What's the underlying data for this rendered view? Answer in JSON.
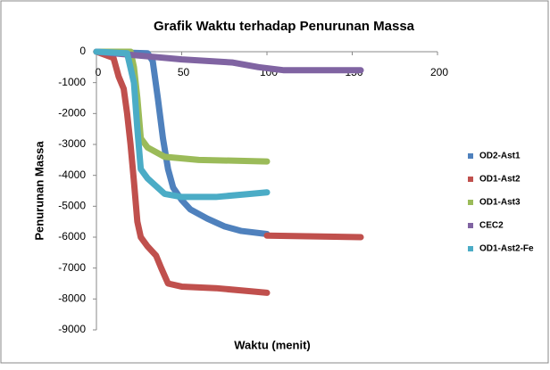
{
  "chart_data": {
    "type": "line",
    "title": "Grafik Waktu terhadap Penurunan Massa",
    "x_label": "Waktu (menit)",
    "y_label": "Penurunan Massa",
    "xlim": [
      0,
      200
    ],
    "xticks": [
      0,
      50,
      100,
      150,
      200
    ],
    "ylim": [
      -9000,
      0
    ],
    "yticks": [
      0,
      -1000,
      -2000,
      -3000,
      -4000,
      -5000,
      -6000,
      -7000,
      -8000,
      -9000
    ],
    "series": [
      {
        "name": "OD2-Ast1",
        "color": "#4f81bd",
        "x": [
          0,
          30,
          33,
          36,
          39,
          42,
          45,
          50,
          55,
          65,
          75,
          85,
          100
        ],
        "values": [
          0,
          -50,
          -300,
          -1500,
          -2800,
          -3800,
          -4400,
          -4800,
          -5100,
          -5400,
          -5650,
          -5800,
          -5900
        ]
      },
      {
        "name": "OD1-Ast2",
        "color": "#c0504d",
        "x": [
          0,
          10,
          13,
          16,
          18,
          20,
          22,
          24,
          26,
          30,
          35,
          38,
          42,
          50,
          70,
          90,
          100,
          100,
          100,
          155
        ],
        "values": [
          0,
          -200,
          -800,
          -1200,
          -2000,
          -3000,
          -4200,
          -5500,
          -6000,
          -6300,
          -6600,
          -7000,
          -7500,
          -7600,
          -7650,
          -7750,
          -7800,
          null,
          -5950,
          -6000
        ]
      },
      {
        "name": "OD1-Ast3",
        "color": "#9bbb59",
        "x": [
          0,
          20,
          22,
          24,
          26,
          30,
          40,
          60,
          100
        ],
        "values": [
          0,
          0,
          -500,
          -1500,
          -2800,
          -3100,
          -3400,
          -3500,
          -3550
        ]
      },
      {
        "name": "CEC2",
        "color": "#8064a2",
        "x": [
          0,
          30,
          50,
          80,
          95,
          110,
          155
        ],
        "values": [
          0,
          -150,
          -250,
          -350,
          -500,
          -600,
          -600
        ]
      },
      {
        "name": "OD1-Ast2-Fe",
        "color": "#4bacc6",
        "x": [
          0,
          18,
          22,
          24,
          26,
          30,
          40,
          50,
          70,
          90,
          100
        ],
        "values": [
          0,
          -50,
          -1000,
          -2500,
          -3800,
          -4100,
          -4600,
          -4700,
          -4700,
          -4600,
          -4550
        ]
      }
    ]
  }
}
